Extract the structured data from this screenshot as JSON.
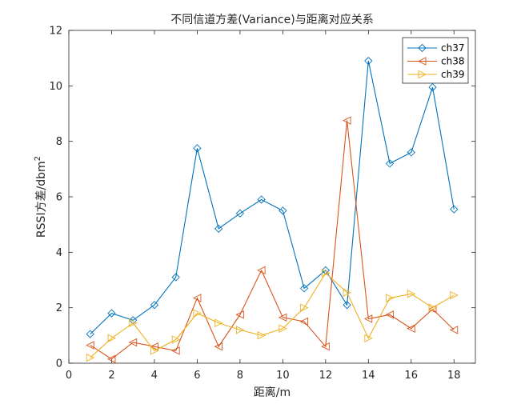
{
  "chart_data": {
    "type": "line",
    "title": "不同信道方差(Variance)与距离对应关系",
    "xlabel": "距离/m",
    "ylabel": "RSSI方差/dbm",
    "ylabel_superscript": "2",
    "xlim": [
      0,
      19
    ],
    "ylim": [
      0,
      12
    ],
    "xticks": [
      "0",
      "2",
      "4",
      "6",
      "8",
      "10",
      "12",
      "14",
      "16",
      "18"
    ],
    "yticks": [
      "0",
      "2",
      "4",
      "6",
      "8",
      "10",
      "12"
    ],
    "grid": false,
    "legend_position": "top-right",
    "x": [
      1,
      2,
      3,
      4,
      5,
      6,
      7,
      8,
      9,
      10,
      11,
      12,
      13,
      14,
      15,
      16,
      17,
      18
    ],
    "series": [
      {
        "name": "ch37",
        "color": "#0072BD",
        "marker": "diamond",
        "values": [
          1.05,
          1.8,
          1.55,
          2.1,
          3.1,
          7.75,
          4.85,
          5.4,
          5.9,
          5.5,
          2.7,
          3.35,
          2.1,
          10.9,
          7.2,
          7.6,
          9.95,
          5.55
        ]
      },
      {
        "name": "ch38",
        "color": "#D95319",
        "marker": "triangle-left",
        "values": [
          0.65,
          0.15,
          0.75,
          0.6,
          0.45,
          2.35,
          0.6,
          1.75,
          3.35,
          1.65,
          1.5,
          0.6,
          8.75,
          1.6,
          1.75,
          1.25,
          1.95,
          1.2
        ]
      },
      {
        "name": "ch39",
        "color": "#EDB120",
        "marker": "triangle-right",
        "values": [
          0.2,
          0.9,
          1.45,
          0.45,
          0.85,
          1.8,
          1.45,
          1.2,
          1.0,
          1.25,
          2.0,
          3.25,
          2.55,
          0.9,
          2.35,
          2.5,
          2.0,
          2.45
        ]
      }
    ]
  }
}
